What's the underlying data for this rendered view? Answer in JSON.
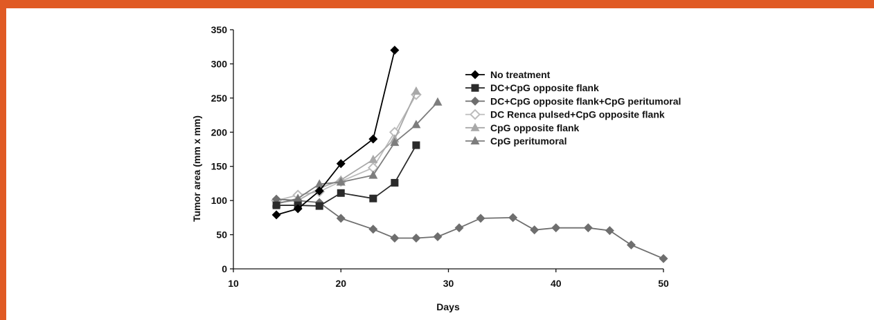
{
  "frame": {
    "accent_color": "#e05a24"
  },
  "chart_data": {
    "type": "line",
    "title": "",
    "xlabel": "Days",
    "ylabel": "Tumor area (mm x mm)",
    "xlim": [
      10,
      50
    ],
    "ylim": [
      0,
      350
    ],
    "xticks": [
      10,
      20,
      30,
      40,
      50
    ],
    "yticks": [
      0,
      50,
      100,
      150,
      200,
      250,
      300,
      350
    ],
    "grid": false,
    "legend_position": "top-right",
    "series": [
      {
        "name": "No treatment",
        "marker": "diamond",
        "color": "#000000",
        "points": [
          [
            14,
            79
          ],
          [
            16,
            88
          ],
          [
            18,
            114
          ],
          [
            20,
            154
          ],
          [
            23,
            190
          ],
          [
            25,
            320
          ]
        ]
      },
      {
        "name": "DC+CpG opposite flank",
        "marker": "square",
        "color": "#2b2b2b",
        "points": [
          [
            14,
            93
          ],
          [
            16,
            93
          ],
          [
            18,
            92
          ],
          [
            20,
            111
          ],
          [
            23,
            103
          ],
          [
            25,
            126
          ],
          [
            27,
            181
          ]
        ]
      },
      {
        "name": "DC+CpG opposite flank+CpG peritumoral",
        "marker": "diamond",
        "color": "#6e6e6e",
        "points": [
          [
            14,
            102
          ],
          [
            16,
            100
          ],
          [
            18,
            97
          ],
          [
            20,
            74
          ],
          [
            23,
            58
          ],
          [
            25,
            45
          ],
          [
            27,
            45
          ],
          [
            29,
            47
          ],
          [
            31,
            60
          ],
          [
            33,
            74
          ],
          [
            36,
            75
          ],
          [
            38,
            57
          ],
          [
            40,
            60
          ],
          [
            43,
            60
          ],
          [
            45,
            56
          ],
          [
            47,
            35
          ],
          [
            50,
            15
          ]
        ]
      },
      {
        "name": "DC Renca pulsed+CpG opposite flank",
        "marker": "diamond-open",
        "color": "#bcbcbc",
        "points": [
          [
            14,
            100
          ],
          [
            16,
            108
          ],
          [
            18,
            113
          ],
          [
            20,
            128
          ],
          [
            23,
            148
          ],
          [
            25,
            200
          ],
          [
            27,
            255
          ]
        ]
      },
      {
        "name": "CpG opposite flank",
        "marker": "triangle",
        "color": "#a8a8a8",
        "points": [
          [
            14,
            97
          ],
          [
            16,
            100
          ],
          [
            18,
            118
          ],
          [
            20,
            130
          ],
          [
            23,
            160
          ],
          [
            25,
            190
          ],
          [
            27,
            260
          ]
        ]
      },
      {
        "name": "CpG peritumoral",
        "marker": "triangle",
        "color": "#7d7d7d",
        "points": [
          [
            14,
            95
          ],
          [
            16,
            103
          ],
          [
            18,
            124
          ],
          [
            20,
            127
          ],
          [
            23,
            137
          ],
          [
            25,
            185
          ],
          [
            27,
            211
          ],
          [
            29,
            244
          ]
        ]
      }
    ]
  }
}
